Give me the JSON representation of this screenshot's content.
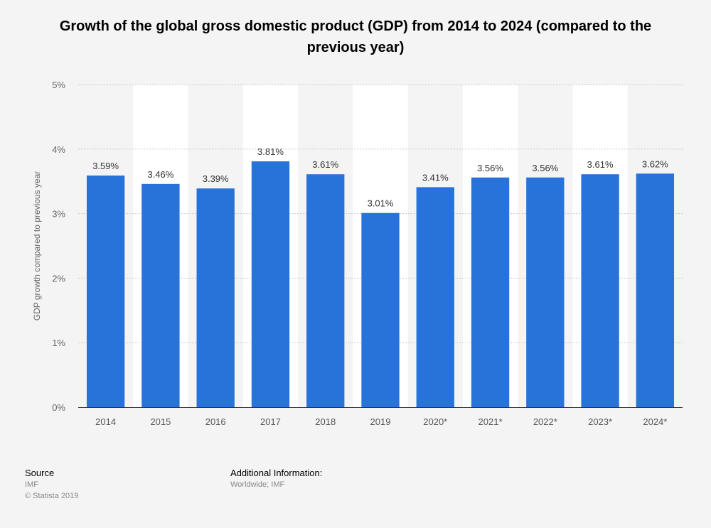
{
  "chart_data": {
    "type": "bar",
    "title": "Growth of the global gross domestic product (GDP) from 2014 to 2024 (compared to the previous year)",
    "xlabel": "",
    "ylabel": "GDP growth compared to previous year",
    "ylim": [
      0,
      5
    ],
    "yticks": [
      0,
      1,
      2,
      3,
      4,
      5
    ],
    "ytick_labels": [
      "0%",
      "1%",
      "2%",
      "3%",
      "4%",
      "5%"
    ],
    "categories": [
      "2014",
      "2015",
      "2016",
      "2017",
      "2018",
      "2019",
      "2020*",
      "2021*",
      "2022*",
      "2023*",
      "2024*"
    ],
    "values": [
      3.59,
      3.46,
      3.39,
      3.81,
      3.61,
      3.01,
      3.41,
      3.56,
      3.56,
      3.61,
      3.62
    ],
    "data_labels": [
      "3.59%",
      "3.46%",
      "3.39%",
      "3.81%",
      "3.61%",
      "3.01%",
      "3.41%",
      "3.56%",
      "3.56%",
      "3.61%",
      "3.62%"
    ],
    "bar_color": "#2873da",
    "grid": true
  },
  "footer": {
    "source_heading": "Source",
    "source_lines": [
      "IMF",
      "© Statista 2019"
    ],
    "info_heading": "Additional Information:",
    "info_lines": [
      "Worldwide; IMF"
    ]
  }
}
